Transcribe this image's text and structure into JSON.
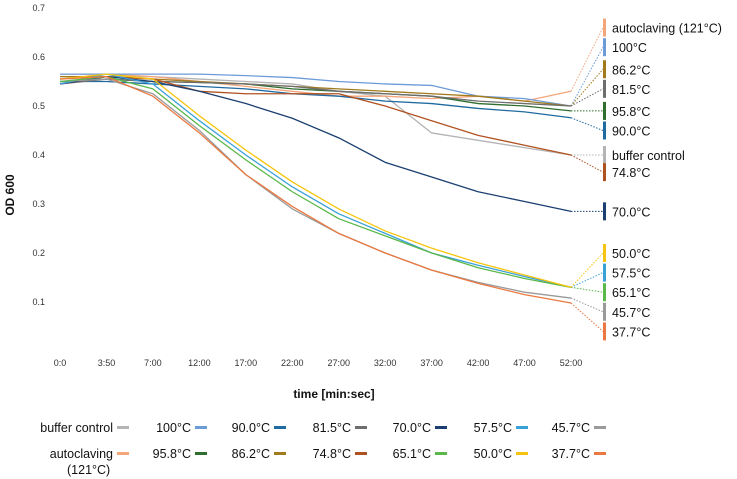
{
  "chart_data": {
    "type": "line",
    "xlabel": "time [min:sec]",
    "ylabel": "OD 600",
    "ylim": [
      0,
      0.7
    ],
    "yticks": [
      0.1,
      0.2,
      0.3,
      0.4,
      0.5,
      0.6,
      0.7
    ],
    "grid": false,
    "categories": [
      "0:0",
      "3:50",
      "7:00",
      "12:00",
      "17:00",
      "22:00",
      "27:00",
      "32:00",
      "37:00",
      "42:00",
      "47:00",
      "52:00"
    ],
    "series": [
      {
        "name": "buffer control",
        "end_label": "buffer control",
        "color": "#b4b4b4",
        "end_value": 0.4,
        "values": [
          0.56,
          0.56,
          0.56,
          0.555,
          0.55,
          0.545,
          0.53,
          0.52,
          0.445,
          0.43,
          0.415,
          0.4
        ]
      },
      {
        "name": "autoclaving (121°C)",
        "end_label": "autoclaving (121°C)",
        "color": "#f4a57a",
        "end_value": 0.66,
        "values": [
          0.565,
          0.565,
          0.56,
          0.55,
          0.54,
          0.53,
          0.52,
          0.52,
          0.515,
          0.52,
          0.51,
          0.53
        ]
      },
      {
        "name": "100°C",
        "end_label": "100°C",
        "color": "#6d9bd8",
        "end_value": 0.62,
        "values": [
          0.565,
          0.565,
          0.565,
          0.565,
          0.562,
          0.558,
          0.55,
          0.545,
          0.542,
          0.52,
          0.515,
          0.5
        ]
      },
      {
        "name": "95.8°C",
        "end_label": "95.8°C",
        "color": "#2f6e2f",
        "end_value": 0.49,
        "values": [
          0.55,
          0.555,
          0.55,
          0.548,
          0.545,
          0.535,
          0.53,
          0.525,
          0.52,
          0.505,
          0.5,
          0.49
        ]
      },
      {
        "name": "90.0°C",
        "end_label": "90.0°C",
        "color": "#1f6aa0",
        "end_value": 0.45,
        "values": [
          0.55,
          0.55,
          0.545,
          0.54,
          0.535,
          0.525,
          0.52,
          0.51,
          0.505,
          0.495,
          0.488,
          0.476
        ]
      },
      {
        "name": "86.2°C",
        "end_label": "86.2°C",
        "color": "#a17a1c",
        "end_value": 0.575,
        "values": [
          0.56,
          0.56,
          0.555,
          0.55,
          0.545,
          0.54,
          0.535,
          0.53,
          0.525,
          0.52,
          0.51,
          0.5
        ]
      },
      {
        "name": "81.5°C",
        "end_label": "81.5°C",
        "color": "#6e6e6e",
        "end_value": 0.535,
        "values": [
          0.545,
          0.555,
          0.55,
          0.548,
          0.545,
          0.54,
          0.53,
          0.525,
          0.52,
          0.51,
          0.505,
          0.5
        ]
      },
      {
        "name": "74.8°C",
        "end_label": "74.8°C",
        "color": "#b05220",
        "end_value": 0.365,
        "values": [
          0.545,
          0.56,
          0.555,
          0.53,
          0.525,
          0.525,
          0.525,
          0.5,
          0.47,
          0.44,
          0.42,
          0.4
        ]
      },
      {
        "name": "70.0°C",
        "end_label": "70.0°C",
        "color": "#1a3f70",
        "end_value": 0.285,
        "values": [
          0.545,
          0.56,
          0.55,
          0.53,
          0.505,
          0.475,
          0.435,
          0.385,
          0.355,
          0.325,
          0.305,
          0.285
        ]
      },
      {
        "name": "57.5°C",
        "end_label": "57.5°C",
        "color": "#3aa0d8",
        "end_value": 0.16,
        "values": [
          0.545,
          0.565,
          0.545,
          0.47,
          0.4,
          0.335,
          0.28,
          0.24,
          0.2,
          0.175,
          0.152,
          0.13
        ]
      },
      {
        "name": "45.7°C",
        "end_label": "45.7°C",
        "color": "#9a9a9a",
        "end_value": 0.08,
        "values": [
          0.55,
          0.555,
          0.525,
          0.45,
          0.36,
          0.29,
          0.24,
          0.2,
          0.165,
          0.14,
          0.12,
          0.108
        ]
      },
      {
        "name": "65.1°C",
        "end_label": "65.1°C",
        "color": "#5ab84a",
        "end_value": 0.12,
        "values": [
          0.55,
          0.56,
          0.535,
          0.46,
          0.39,
          0.325,
          0.27,
          0.235,
          0.2,
          0.17,
          0.148,
          0.13
        ]
      },
      {
        "name": "50.0°C",
        "end_label": "50.0°C",
        "color": "#f6c40f",
        "end_value": 0.2,
        "values": [
          0.555,
          0.565,
          0.555,
          0.48,
          0.41,
          0.345,
          0.29,
          0.245,
          0.21,
          0.18,
          0.155,
          0.13
        ]
      },
      {
        "name": "37.7°C",
        "end_label": "37.7°C",
        "color": "#ea7840",
        "end_value": 0.04,
        "values": [
          0.555,
          0.56,
          0.52,
          0.445,
          0.36,
          0.295,
          0.24,
          0.2,
          0.165,
          0.138,
          0.115,
          0.098
        ]
      }
    ],
    "legend_order": [
      [
        "buffer control",
        "100°C",
        "90.0°C",
        "81.5°C",
        "70.0°C",
        "57.5°C",
        "45.7°C"
      ],
      [
        "autoclaving (121°C)",
        "95.8°C",
        "86.2°C",
        "74.8°C",
        "65.1°C",
        "50.0°C",
        "37.7°C"
      ]
    ]
  }
}
